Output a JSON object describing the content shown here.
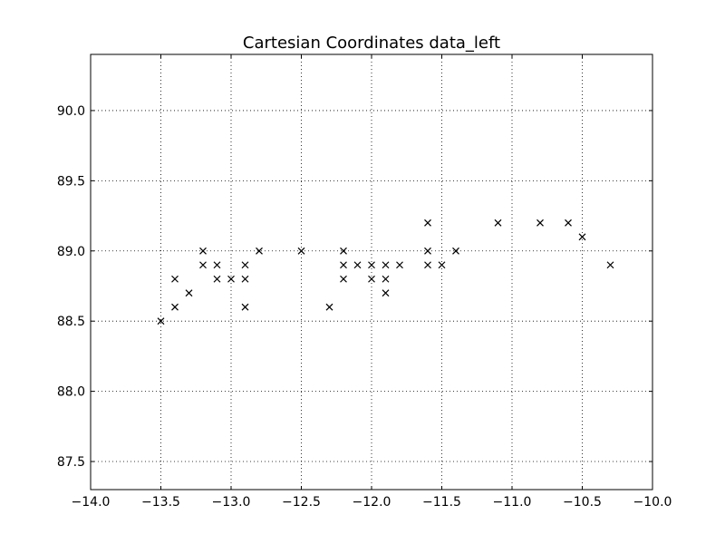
{
  "chart_data": {
    "type": "scatter",
    "title": "Cartesian Coordinates data_left",
    "xlabel": "",
    "ylabel": "",
    "xlim": [
      -14.0,
      -10.0
    ],
    "ylim": [
      87.3,
      90.4
    ],
    "xticks": [
      -14.0,
      -13.5,
      -13.0,
      -12.5,
      -12.0,
      -11.5,
      -11.0,
      -10.5,
      -10.0
    ],
    "xtick_labels": [
      "−14.0",
      "−13.5",
      "−13.0",
      "−12.5",
      "−12.0",
      "−11.5",
      "−11.0",
      "−10.5",
      "−10.0"
    ],
    "yticks": [
      87.5,
      88.0,
      88.5,
      89.0,
      89.5,
      90.0
    ],
    "ytick_labels": [
      "87.5",
      "88.0",
      "88.5",
      "89.0",
      "89.5",
      "90.0"
    ],
    "grid": true,
    "marker": "x",
    "series": [
      {
        "x": [
          -13.5,
          -13.4,
          -13.4,
          -13.3,
          -13.2,
          -13.2,
          -13.1,
          -13.1,
          -13.0,
          -12.9,
          -12.9,
          -12.9,
          -12.8,
          -12.5,
          -12.3,
          -12.2,
          -12.2,
          -12.2,
          -12.1,
          -12.0,
          -12.0,
          -11.9,
          -11.9,
          -11.9,
          -11.8,
          -11.6,
          -11.6,
          -11.6,
          -11.5,
          -11.4,
          -11.1,
          -10.8,
          -10.6,
          -10.5,
          -10.3
        ],
        "y": [
          88.5,
          88.8,
          88.6,
          88.7,
          89.0,
          88.9,
          88.9,
          88.8,
          88.8,
          88.9,
          88.8,
          88.6,
          89.0,
          89.0,
          88.6,
          89.0,
          88.9,
          88.8,
          88.9,
          88.9,
          88.8,
          88.9,
          88.8,
          88.7,
          88.9,
          89.2,
          89.0,
          88.9,
          88.9,
          89.0,
          89.2,
          89.2,
          89.2,
          89.1,
          88.9
        ]
      }
    ]
  }
}
